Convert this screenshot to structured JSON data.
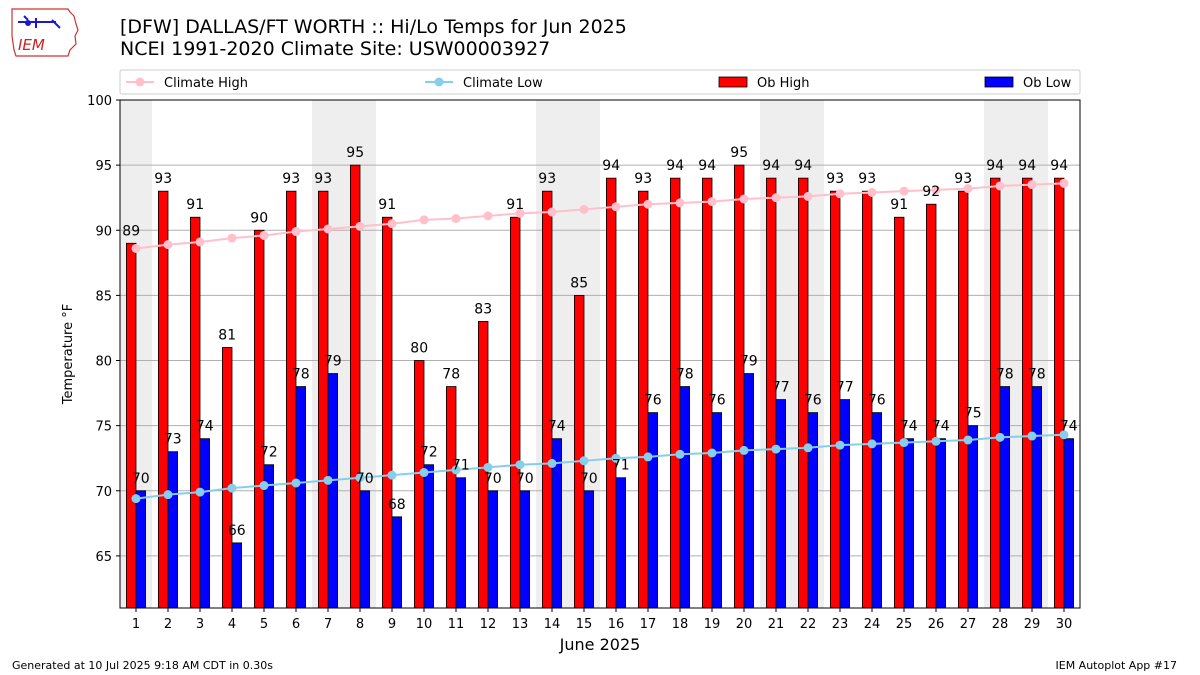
{
  "logo": {
    "text": "IEM"
  },
  "title": {
    "line1": "[DFW] DALLAS/FT WORTH :: Hi/Lo Temps for Jun 2025",
    "line2": "NCEI 1991-2020 Climate Site: USW00003927"
  },
  "footer": {
    "generated": "Generated at 10 Jul 2025 9:18 AM CDT in 0.30s",
    "app": "IEM Autoplot App #17"
  },
  "colors": {
    "ob_high": "#ff0000",
    "ob_low": "#0000ff",
    "climate_high": "#ffc0cb",
    "climate_low": "#87ceeb",
    "weekend_band": "#eeeeee"
  },
  "chart_data": {
    "type": "bar",
    "xlabel": "June 2025",
    "ylabel": "Temperature °F",
    "ylim": [
      61,
      100
    ],
    "yticks": [
      65,
      70,
      75,
      80,
      85,
      90,
      95,
      100
    ],
    "grid": true,
    "legend": "top",
    "categories": [
      "1",
      "2",
      "3",
      "4",
      "5",
      "6",
      "7",
      "8",
      "9",
      "10",
      "11",
      "12",
      "13",
      "14",
      "15",
      "16",
      "17",
      "18",
      "19",
      "20",
      "21",
      "22",
      "23",
      "24",
      "25",
      "26",
      "27",
      "28",
      "29",
      "30"
    ],
    "shaded_days": [
      1,
      7,
      8,
      14,
      15,
      21,
      22,
      28,
      29
    ],
    "series": [
      {
        "name": "Climate High",
        "kind": "line",
        "values": [
          88.6,
          88.9,
          89.1,
          89.4,
          89.6,
          89.9,
          90.1,
          90.3,
          90.5,
          90.8,
          90.9,
          91.1,
          91.3,
          91.4,
          91.6,
          91.8,
          92.0,
          92.1,
          92.2,
          92.4,
          92.5,
          92.6,
          92.8,
          92.9,
          93.0,
          93.1,
          93.2,
          93.4,
          93.5,
          93.6
        ]
      },
      {
        "name": "Climate Low",
        "kind": "line",
        "values": [
          69.4,
          69.7,
          69.9,
          70.2,
          70.4,
          70.6,
          70.8,
          71.0,
          71.2,
          71.4,
          71.6,
          71.8,
          72.0,
          72.1,
          72.3,
          72.5,
          72.6,
          72.8,
          72.9,
          73.1,
          73.2,
          73.3,
          73.5,
          73.6,
          73.7,
          73.8,
          73.9,
          74.1,
          74.2,
          74.3
        ]
      },
      {
        "name": "Ob High",
        "kind": "bar",
        "values": [
          89,
          93,
          91,
          81,
          90,
          93,
          93,
          95,
          91,
          80,
          78,
          83,
          91,
          93,
          85,
          94,
          93,
          94,
          94,
          95,
          94,
          94,
          93,
          93,
          91,
          92,
          93,
          94,
          94,
          94
        ]
      },
      {
        "name": "Ob Low",
        "kind": "bar",
        "values": [
          70,
          73,
          74,
          66,
          72,
          78,
          79,
          70,
          68,
          72,
          71,
          70,
          70,
          74,
          70,
          71,
          76,
          78,
          76,
          79,
          77,
          76,
          77,
          76,
          74,
          74,
          75,
          78,
          78,
          74
        ]
      }
    ]
  }
}
